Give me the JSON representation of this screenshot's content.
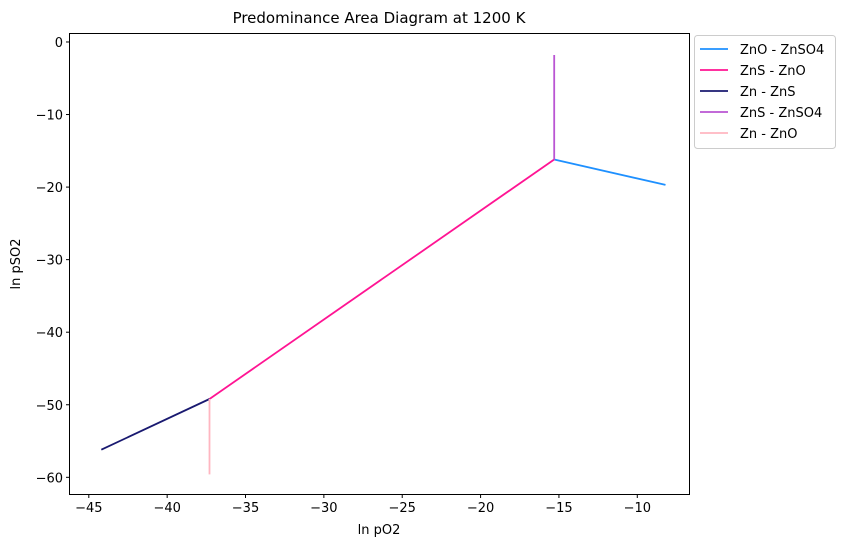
{
  "chart_data": {
    "type": "line",
    "title": "Predominance Area Diagram at 1200 K",
    "xlabel": "ln pO2",
    "ylabel": "ln pSO2",
    "xlim": [
      -46.2,
      -6.7
    ],
    "ylim": [
      -62.3,
      1.1
    ],
    "xticks": [
      -45,
      -40,
      -35,
      -30,
      -25,
      -20,
      -15,
      -10
    ],
    "yticks": [
      0,
      -10,
      -20,
      -30,
      -40,
      -50,
      -60
    ],
    "xtick_labels": [
      "−45",
      "−40",
      "−35",
      "−30",
      "−25",
      "−20",
      "−15",
      "−10"
    ],
    "ytick_labels": [
      "0",
      "−10",
      "−20",
      "−30",
      "−40",
      "−50",
      "−60"
    ],
    "grid": false,
    "legend_position": "outside-upper-right",
    "series": [
      {
        "name": "ZnO - ZnSO4",
        "color": "#1e90ff",
        "x": [
          -15.3,
          -8.2
        ],
        "y": [
          -16.2,
          -19.7
        ]
      },
      {
        "name": "ZnS - ZnO",
        "color": "#ff1493",
        "x": [
          -37.3,
          -15.3
        ],
        "y": [
          -49.2,
          -16.2
        ]
      },
      {
        "name": "Zn - ZnS",
        "color": "#191970",
        "x": [
          -44.2,
          -37.3
        ],
        "y": [
          -56.2,
          -49.2
        ]
      },
      {
        "name": "ZnS - ZnSO4",
        "color": "#ba55d3",
        "x": [
          -15.3,
          -15.3
        ],
        "y": [
          -1.8,
          -16.2
        ]
      },
      {
        "name": "Zn - ZnO",
        "color": "#ffb6c1",
        "x": [
          -37.3,
          -37.3
        ],
        "y": [
          -49.2,
          -59.6
        ]
      }
    ]
  }
}
